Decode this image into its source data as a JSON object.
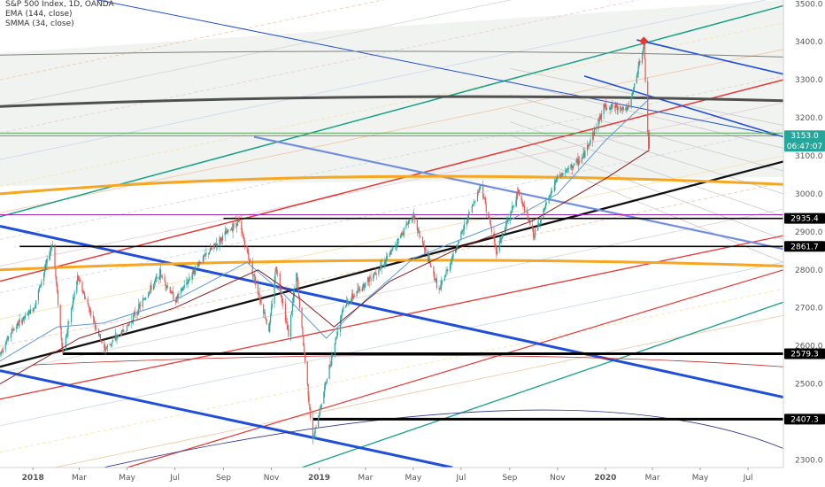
{
  "legend": {
    "symbol_line": "S&P 500 Index, 1D, OANDA",
    "indicator_1": "EMA (144, close)",
    "indicator_2": "SMMA (34, close)"
  },
  "colors": {
    "background": "#ffffff",
    "candle_up": "#26a69a",
    "candle_down": "#ef5350",
    "ema": "#5b9bd5",
    "smma": "#8b1a1a",
    "last_price_badge": "#26a69a",
    "level_badge": "#000000",
    "channel_blue": "#1f4fd8",
    "trend_red": "#e53935",
    "trend_green": "#16a085",
    "arc_dark": "#505050",
    "arc_orange": "#f5a623",
    "trend_black": "#111111"
  },
  "chart_data": {
    "type": "candlestick",
    "title": "S&P 500 Index, 1D, OANDA",
    "symbol": "S&P 500 Index",
    "interval": "1D",
    "source": "OANDA",
    "indicators": [
      "EMA (144, close)",
      "SMMA (34, close)"
    ],
    "x_ticks": [
      "2018",
      "Mar",
      "May",
      "Jul",
      "Sep",
      "Nov",
      "2019",
      "Mar",
      "May",
      "Jul",
      "Sep",
      "Nov",
      "2020",
      "Mar",
      "May",
      "Jul"
    ],
    "y_ticks": [
      2300.0,
      2400.0,
      2500.0,
      2600.0,
      2700.0,
      2800.0,
      2900.0,
      3000.0,
      3100.0,
      3200.0,
      3300.0,
      3400.0,
      3500.0
    ],
    "ylim": [
      2280,
      3510
    ],
    "xlim": [
      "2017-11-20",
      "2020-08-15"
    ],
    "last_price": {
      "value": "3153.0",
      "countdown": "06:47:07"
    },
    "price_levels": [
      {
        "label": "2935.4",
        "value": 2935.4,
        "from": "2018-09-01"
      },
      {
        "label": "2861.7",
        "value": 2861.7,
        "from": "2017-12-15"
      },
      {
        "label": "2579.3",
        "value": 2579.3,
        "from": "2018-02-08"
      },
      {
        "label": "2407.3",
        "value": 2407.3,
        "from": "2018-12-24"
      }
    ],
    "price_path": [
      [
        "2017-11-20",
        2580
      ],
      [
        "2017-12-05",
        2640
      ],
      [
        "2018-01-02",
        2700
      ],
      [
        "2018-01-26",
        2872
      ],
      [
        "2018-02-08",
        2580
      ],
      [
        "2018-02-27",
        2780
      ],
      [
        "2018-04-02",
        2590
      ],
      [
        "2018-05-01",
        2650
      ],
      [
        "2018-06-12",
        2790
      ],
      [
        "2018-07-02",
        2720
      ],
      [
        "2018-08-01",
        2820
      ],
      [
        "2018-09-20",
        2930
      ],
      [
        "2018-10-29",
        2640
      ],
      [
        "2018-11-07",
        2810
      ],
      [
        "2018-11-23",
        2630
      ],
      [
        "2018-12-03",
        2790
      ],
      [
        "2018-12-24",
        2350
      ],
      [
        "2019-01-31",
        2700
      ],
      [
        "2019-03-29",
        2830
      ],
      [
        "2019-04-30",
        2945
      ],
      [
        "2019-06-03",
        2745
      ],
      [
        "2019-07-26",
        3025
      ],
      [
        "2019-08-15",
        2850
      ],
      [
        "2019-09-12",
        3005
      ],
      [
        "2019-10-02",
        2890
      ],
      [
        "2019-10-31",
        3040
      ],
      [
        "2019-12-03",
        3095
      ],
      [
        "2019-12-31",
        3230
      ],
      [
        "2020-01-31",
        3225
      ],
      [
        "2020-02-19",
        3393
      ],
      [
        "2020-02-25",
        3120
      ],
      [
        "2020-02-26",
        3153
      ]
    ],
    "ema_path": [
      [
        "2017-11-20",
        2560
      ],
      [
        "2018-02-01",
        2650
      ],
      [
        "2018-04-01",
        2660
      ],
      [
        "2018-07-01",
        2720
      ],
      [
        "2018-10-01",
        2820
      ],
      [
        "2018-11-15",
        2740
      ],
      [
        "2019-01-10",
        2620
      ],
      [
        "2019-03-01",
        2720
      ],
      [
        "2019-05-01",
        2830
      ],
      [
        "2019-07-01",
        2880
      ],
      [
        "2019-09-01",
        2930
      ],
      [
        "2019-11-01",
        3000
      ],
      [
        "2020-01-01",
        3140
      ],
      [
        "2020-02-26",
        3250
      ]
    ],
    "smma_path": [
      [
        "2017-11-20",
        2500
      ],
      [
        "2018-03-01",
        2620
      ],
      [
        "2018-07-01",
        2700
      ],
      [
        "2018-10-15",
        2800
      ],
      [
        "2018-12-10",
        2720
      ],
      [
        "2019-01-20",
        2650
      ],
      [
        "2019-04-01",
        2770
      ],
      [
        "2019-07-01",
        2860
      ],
      [
        "2019-10-01",
        2930
      ],
      [
        "2020-01-01",
        3040
      ],
      [
        "2020-02-26",
        3115
      ]
    ],
    "drawn_lines": [
      {
        "name": "upper-green-trendline",
        "color": "#16a085",
        "width": 1.5,
        "from": [
          "2017-11-20",
          2940
        ],
        "to": [
          "2020-08-15",
          3495
        ]
      },
      {
        "name": "lower-green-trendline",
        "color": "#16a085",
        "width": 1.3,
        "from": [
          "2018-12-10",
          2280
        ],
        "to": [
          "2020-08-15",
          2715
        ]
      },
      {
        "name": "red-trendline-1",
        "color": "#e53935",
        "width": 1.5,
        "from": [
          "2017-11-20",
          2770
        ],
        "to": [
          "2020-08-15",
          3300
        ]
      },
      {
        "name": "red-trendline-2",
        "color": "#e53935",
        "width": 1.3,
        "from": [
          "2017-11-20",
          2460
        ],
        "to": [
          "2020-08-15",
          2890
        ]
      },
      {
        "name": "red-trendline-3",
        "color": "#e53935",
        "width": 1.2,
        "from": [
          "2018-05-01",
          2280
        ],
        "to": [
          "2020-08-15",
          2800
        ]
      },
      {
        "name": "black-trendline",
        "color": "#111111",
        "width": 2.3,
        "from": [
          "2017-11-20",
          2545
        ],
        "to": [
          "2020-08-15",
          3085
        ]
      },
      {
        "name": "blue-channel-upper",
        "color": "#1f4fd8",
        "width": 3,
        "from": [
          "2017-11-20",
          2915
        ],
        "to": [
          "2020-08-15",
          2465
        ]
      },
      {
        "name": "blue-channel-lower",
        "color": "#1f4fd8",
        "width": 3,
        "from": [
          "2017-11-20",
          2535
        ],
        "to": [
          "2019-06-20",
          2280
        ]
      },
      {
        "name": "light-blue-trendline",
        "color": "#6f8ee0",
        "width": 2.2,
        "from": [
          "2018-10-10",
          3150
        ],
        "to": [
          "2020-08-15",
          2855
        ]
      },
      {
        "name": "blue-thin-ray",
        "color": "#1f4fd8",
        "width": 1,
        "from": [
          "2018-03-01",
          3520
        ],
        "to": [
          "2020-08-15",
          3150
        ]
      },
      {
        "name": "blue-flag-upper",
        "color": "#1f4fd8",
        "width": 1.6,
        "from": [
          "2020-02-10",
          3405
        ],
        "to": [
          "2020-08-15",
          3315
        ]
      },
      {
        "name": "blue-flag-lower",
        "color": "#1f4fd8",
        "width": 1.6,
        "from": [
          "2019-12-05",
          3310
        ],
        "to": [
          "2020-08-15",
          3150
        ]
      },
      {
        "name": "grey-horizontal",
        "color": "#808080",
        "width": 1,
        "from": [
          "2017-11-20",
          3153
        ],
        "to": [
          "2020-08-15",
          3153
        ]
      },
      {
        "name": "purple-horizontal",
        "color": "#9c27b0",
        "width": 1,
        "from": [
          "2017-11-20",
          2945
        ],
        "to": [
          "2020-08-15",
          2945
        ]
      },
      {
        "name": "green-horizontal",
        "color": "#4caf50",
        "width": 1,
        "from": [
          "2017-11-20",
          3160
        ],
        "to": [
          "2020-08-15",
          3160
        ]
      }
    ],
    "arcs": [
      {
        "name": "dark-arc",
        "color": "#505050",
        "width": 3,
        "left": [
          "2017-11-20",
          3230
        ],
        "peak": [
          "2019-04-01",
          3255
        ],
        "right": [
          "2020-08-15",
          3245
        ]
      },
      {
        "name": "orange-arc-upper",
        "color": "#f5a623",
        "width": 3,
        "left": [
          "2017-11-20",
          3000
        ],
        "peak": [
          "2019-03-01",
          3045
        ],
        "right": [
          "2020-08-15",
          3025
        ]
      },
      {
        "name": "orange-arc-lower",
        "color": "#f5a623",
        "width": 3,
        "left": [
          "2017-11-20",
          2800
        ],
        "peak": [
          "2019-04-01",
          2825
        ],
        "right": [
          "2020-08-15",
          2810
        ]
      },
      {
        "name": "thin-dark-arc",
        "color": "#808080",
        "width": 1,
        "left": [
          "2017-11-20",
          3365
        ],
        "peak": [
          "2019-05-01",
          3375
        ],
        "right": [
          "2020-08-15",
          3360
        ]
      },
      {
        "name": "red-thin-arc",
        "color": "#c62828",
        "width": 0.8,
        "left": [
          "2018-01-01",
          2550
        ],
        "peak": [
          "2019-06-01",
          2575
        ],
        "right": [
          "2020-08-15",
          2545
        ]
      },
      {
        "name": "navy-thin-arc",
        "color": "#283593",
        "width": 0.8,
        "left": [
          "2018-04-01",
          2280
        ],
        "peak": [
          "2019-09-01",
          2430
        ],
        "right": [
          "2020-08-15",
          2330
        ]
      }
    ]
  }
}
